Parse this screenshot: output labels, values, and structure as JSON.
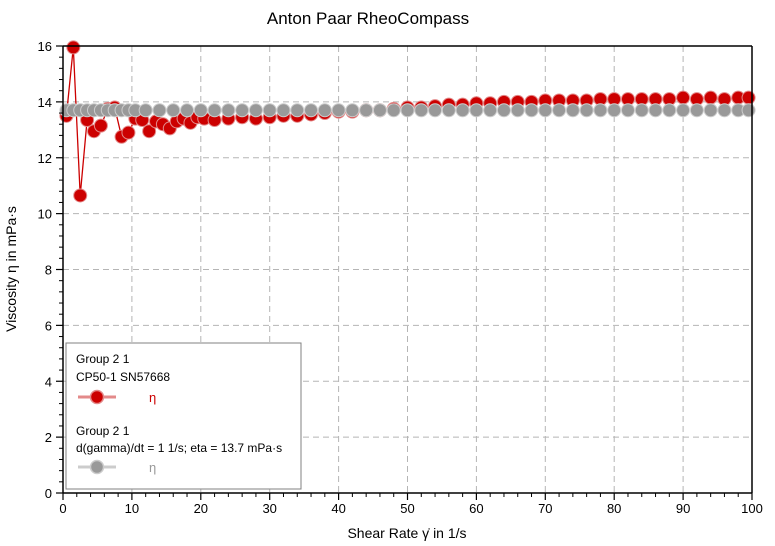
{
  "chart_data": {
    "type": "scatter",
    "title": "Anton Paar RheoCompass",
    "xlabel": "Shear Rate γ̇ in 1/s",
    "ylabel": "Viscosity η in mPa·s",
    "xlim": [
      0,
      100
    ],
    "ylim": [
      0,
      16
    ],
    "x_ticks": [
      "0",
      "10",
      "20",
      "30",
      "40",
      "50",
      "60",
      "70",
      "80",
      "90",
      "100"
    ],
    "y_ticks": [
      "0",
      "2",
      "4",
      "6",
      "8",
      "10",
      "12",
      "14",
      "16"
    ],
    "grid": true,
    "legend_position": "bottom-left",
    "series": [
      {
        "group": "Group 2 1",
        "subtitle": "CP50-1 SN57668",
        "name": "η",
        "color": "#cc0000",
        "marker": "circle",
        "line": true,
        "x": [
          0.5,
          1.5,
          2.5,
          3.5,
          4.5,
          5.5,
          6.5,
          7.5,
          8.5,
          9.5,
          10.5,
          11.5,
          12.5,
          13.5,
          14.5,
          15.5,
          16.5,
          17.5,
          18.5,
          19.5,
          20.5,
          22,
          24,
          26,
          28,
          30,
          32,
          34,
          36,
          38,
          40,
          42,
          44,
          46,
          48,
          50,
          52,
          54,
          56,
          58,
          60,
          62,
          64,
          66,
          68,
          70,
          72,
          74,
          76,
          78,
          80,
          82,
          84,
          86,
          88,
          90,
          92,
          94,
          96,
          98,
          99.5
        ],
        "y": [
          13.5,
          15.95,
          10.65,
          13.35,
          12.95,
          13.15,
          13.75,
          13.8,
          12.75,
          12.9,
          13.4,
          13.35,
          12.95,
          13.3,
          13.2,
          13.05,
          13.3,
          13.4,
          13.25,
          13.45,
          13.4,
          13.35,
          13.4,
          13.45,
          13.4,
          13.45,
          13.5,
          13.5,
          13.55,
          13.6,
          13.65,
          13.65,
          13.7,
          13.7,
          13.75,
          13.8,
          13.8,
          13.85,
          13.9,
          13.9,
          13.95,
          13.95,
          14.0,
          14.0,
          14.0,
          14.05,
          14.05,
          14.05,
          14.05,
          14.1,
          14.1,
          14.1,
          14.1,
          14.1,
          14.1,
          14.15,
          14.1,
          14.15,
          14.1,
          14.15,
          14.15
        ]
      },
      {
        "group": "Group 2 1",
        "subtitle": "d(gamma)/dt = 1 1/s; eta = 13.7 mPa·s",
        "name": "η",
        "color": "#999999",
        "marker": "circle",
        "line": true,
        "x": [
          0.5,
          1.5,
          2.5,
          3.5,
          4.5,
          5.5,
          6.5,
          7.5,
          8.5,
          9.5,
          10.5,
          12,
          14,
          16,
          18,
          20,
          22,
          24,
          26,
          28,
          30,
          32,
          34,
          36,
          38,
          40,
          42,
          44,
          46,
          48,
          50,
          52,
          54,
          56,
          58,
          60,
          62,
          64,
          66,
          68,
          70,
          72,
          74,
          76,
          78,
          80,
          82,
          84,
          86,
          88,
          90,
          92,
          94,
          96,
          98,
          99.5
        ],
        "y": [
          13.7,
          13.7,
          13.7,
          13.7,
          13.7,
          13.7,
          13.7,
          13.7,
          13.7,
          13.7,
          13.7,
          13.7,
          13.7,
          13.7,
          13.7,
          13.7,
          13.7,
          13.7,
          13.7,
          13.7,
          13.7,
          13.7,
          13.7,
          13.7,
          13.7,
          13.7,
          13.7,
          13.7,
          13.7,
          13.7,
          13.7,
          13.7,
          13.7,
          13.7,
          13.7,
          13.7,
          13.7,
          13.7,
          13.7,
          13.7,
          13.7,
          13.7,
          13.7,
          13.7,
          13.7,
          13.7,
          13.7,
          13.7,
          13.7,
          13.7,
          13.7,
          13.7,
          13.7,
          13.7,
          13.7,
          13.7
        ]
      }
    ]
  }
}
